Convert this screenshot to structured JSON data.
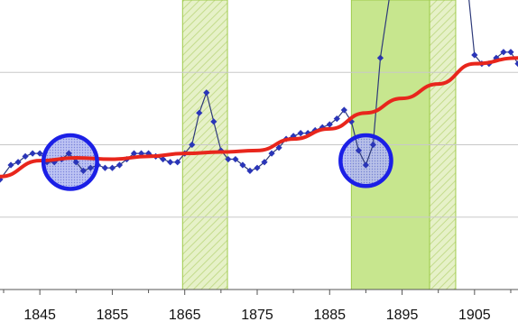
{
  "chart_data": {
    "type": "line",
    "title": "",
    "xlabel": "",
    "ylabel": "",
    "xlim": [
      1839.5,
      1911
    ],
    "ylim": [
      0,
      100
    ],
    "x_ticks": [
      1845,
      1855,
      1865,
      1875,
      1885,
      1895,
      1905
    ],
    "x_tick_labels": [
      "1845",
      "1855",
      "1865",
      "1875",
      "1885",
      "1895",
      "1905"
    ],
    "grid": {
      "horizontal": true,
      "vertical": false,
      "y_values": [
        25,
        50,
        75
      ]
    },
    "legend": "none",
    "series": [
      {
        "kind": "raw",
        "marker": "diamond",
        "color": "#2a35b8",
        "line_color": "#2e3a7a",
        "x": [
          1839.5,
          1841,
          1842,
          1843,
          1844,
          1845,
          1846,
          1847,
          1848,
          1849,
          1850,
          1851,
          1852,
          1853,
          1854,
          1855,
          1856,
          1857,
          1858,
          1859,
          1860,
          1861,
          1862,
          1863,
          1864,
          1865,
          1866,
          1867,
          1868,
          1869,
          1870,
          1871,
          1872,
          1873,
          1874,
          1875,
          1876,
          1877,
          1878,
          1879,
          1880,
          1881,
          1882,
          1883,
          1884,
          1885,
          1886,
          1887,
          1888,
          1889,
          1890,
          1891,
          1892,
          1893,
          1894,
          1895,
          1896,
          1897,
          1898,
          1899,
          1900,
          1901,
          1902,
          1903,
          1904,
          1905,
          1906,
          1907,
          1908,
          1909,
          1910,
          1911
        ],
        "y": [
          38,
          43,
          44,
          46,
          47,
          47,
          44,
          44,
          45,
          47,
          44,
          41,
          42,
          43,
          42,
          42,
          43,
          45,
          47,
          47,
          47,
          46,
          45,
          44,
          44,
          47,
          50,
          61,
          68,
          58,
          48,
          45,
          45,
          43,
          41,
          42,
          44,
          47,
          49,
          52,
          53,
          54,
          54,
          55,
          56,
          57,
          59,
          62,
          58,
          48,
          43,
          50,
          80,
          null,
          null,
          null,
          null,
          null,
          null,
          null,
          null,
          null,
          null,
          null,
          null,
          null,
          null,
          null,
          null,
          null,
          null,
          null
        ],
        "gap_note": "",
        "tail_x": [
          1903.8,
          1905,
          1906,
          1907,
          1908,
          1909,
          1910,
          1911
        ],
        "tail_y": [
          111,
          81,
          78,
          78,
          80,
          82,
          82,
          78
        ]
      },
      {
        "kind": "trend",
        "color": "#e8261c",
        "x": [
          1839.5,
          1845,
          1850,
          1855,
          1860,
          1865,
          1870,
          1875,
          1880,
          1885,
          1890,
          1895,
          1900,
          1905,
          1911
        ],
        "y": [
          39,
          44.5,
          45.5,
          45,
          46,
          47,
          47.5,
          48,
          52,
          55.5,
          61,
          66,
          71,
          78,
          80
        ]
      }
    ],
    "shaded_regions": [
      {
        "x0": 1864.7,
        "x1": 1870.9,
        "fill": "#e2efc0",
        "pattern": "hatched"
      },
      {
        "x0": 1888,
        "x1": 1898.8,
        "fill": "#c7e68e",
        "pattern": "solid"
      },
      {
        "x0": 1898.8,
        "x1": 1902.4,
        "fill": "#e2efc0",
        "pattern": "hatched"
      }
    ],
    "annotations": [
      {
        "type": "circle",
        "cx": 1849.2,
        "cy": 44,
        "radius_years": 3.7
      },
      {
        "type": "circle",
        "cx": 1890,
        "cy": 44.5,
        "radius_years": 3.5
      }
    ]
  }
}
